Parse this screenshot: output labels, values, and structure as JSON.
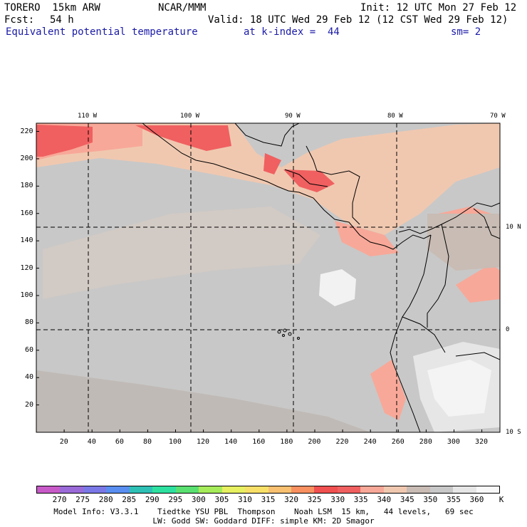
{
  "header": {
    "model": "TORERO  15km ARW",
    "center": "NCAR/MMM",
    "init": "Init: 12 UTC Mon 27 Feb 12",
    "fcst_label": "Fcst:",
    "fcst_value": "54 h",
    "valid": "Valid: 18 UTC Wed 29 Feb 12 (12 CST Wed 29 Feb 12)",
    "field": "Equivalent potential temperature",
    "level": "at k-index =  44",
    "smooth": "sm= 2"
  },
  "map": {
    "top_lon_labels": [
      "110 W",
      "100 W",
      "90 W",
      "80 W",
      "70 W"
    ],
    "right_lat_labels": [
      "10 N",
      "0",
      "10 S"
    ],
    "y_grid_ticks": [
      "20",
      "40",
      "60",
      "80",
      "100",
      "120",
      "140",
      "160",
      "180",
      "200",
      "220"
    ],
    "x_grid_ticks": [
      "20",
      "40",
      "60",
      "80",
      "100",
      "120",
      "140",
      "160",
      "180",
      "200",
      "220",
      "240",
      "260",
      "280",
      "300",
      "320"
    ],
    "dominant_field_color": "#c8c8c8"
  },
  "colorbar": {
    "labels": [
      "270",
      "275",
      "280",
      "285",
      "290",
      "295",
      "300",
      "305",
      "310",
      "315",
      "320",
      "325",
      "330",
      "335",
      "340",
      "345",
      "350",
      "355",
      "360",
      "K"
    ],
    "colors": [
      "#c85ac8",
      "#9a6ad8",
      "#7a78e6",
      "#5a8ef0",
      "#2ec0b4",
      "#2ee0a0",
      "#5ae070",
      "#a6ec5a",
      "#e6f060",
      "#f8e068",
      "#f8c070",
      "#f89060",
      "#f05050",
      "#f06060",
      "#f8a898",
      "#f0c8b0",
      "#c8bcb4",
      "#c8c8c8",
      "#e6e6e6",
      "#f8f8f8"
    ]
  },
  "footer": {
    "line1": "Model Info: V3.3.1    Tiedtke YSU PBL  Thompson    Noah LSM  15 km,   44 levels,   69 sec",
    "line2": "LW: Godd SW: Goddard DIFF: simple KM: 2D Smagor"
  }
}
